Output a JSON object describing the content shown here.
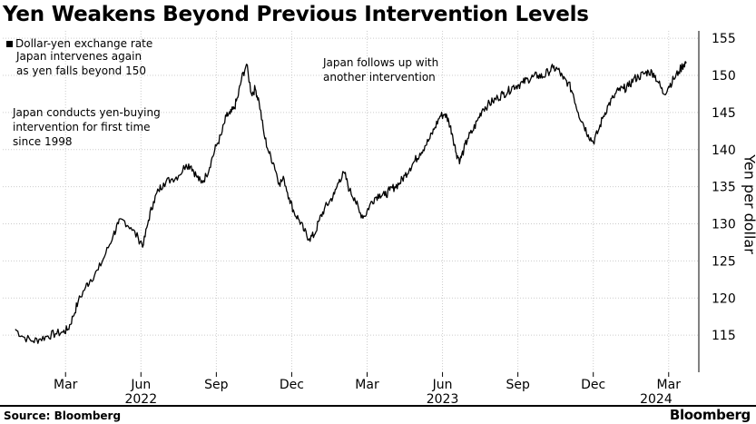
{
  "title": "Yen Weakens Beyond Previous Intervention Levels",
  "legend": "Dollar-yen exchange rate",
  "source": "Source: Bloomberg",
  "brand": "Bloomberg",
  "colors": {
    "series": "#000000",
    "grid": "#cccccc",
    "text": "#000000",
    "background": "#ffffff"
  },
  "chart_data": {
    "type": "line",
    "title": "Yen Weakens Beyond Previous Intervention Levels",
    "ylabel": "Yen per dollar",
    "xlabel": "",
    "ylim": [
      110,
      156
    ],
    "grid": true,
    "y_ticks": [
      115,
      120,
      125,
      130,
      135,
      140,
      145,
      150,
      155
    ],
    "month_ticks": [
      {
        "label": "Mar",
        "t": 2
      },
      {
        "label": "Jun",
        "t": 5
      },
      {
        "label": "Sep",
        "t": 8
      },
      {
        "label": "Dec",
        "t": 11
      },
      {
        "label": "Mar",
        "t": 14
      },
      {
        "label": "Jun",
        "t": 17
      },
      {
        "label": "Sep",
        "t": 20
      },
      {
        "label": "Dec",
        "t": 23
      },
      {
        "label": "Mar",
        "t": 26
      }
    ],
    "year_labels": [
      {
        "label": "2022",
        "t": 5
      },
      {
        "label": "2023",
        "t": 17
      },
      {
        "label": "2024",
        "t": 25.5
      }
    ],
    "series": [
      {
        "name": "Dollar-yen exchange rate",
        "t": [
          0,
          0.3,
          0.7,
          1.0,
          1.3,
          1.6,
          1.9,
          2.1,
          2.3,
          2.5,
          2.8,
          3.0,
          3.3,
          3.6,
          3.9,
          4.1,
          4.3,
          4.6,
          4.9,
          5.1,
          5.3,
          5.5,
          5.7,
          5.9,
          6.2,
          6.5,
          6.8,
          7.0,
          7.2,
          7.4,
          7.6,
          7.8,
          8.0,
          8.2,
          8.4,
          8.55,
          8.7,
          8.85,
          9.0,
          9.2,
          9.4,
          9.55,
          9.7,
          9.9,
          10.1,
          10.3,
          10.5,
          10.7,
          10.9,
          11.1,
          11.3,
          11.5,
          11.7,
          11.9,
          12.1,
          12.3,
          12.5,
          12.7,
          12.9,
          13.1,
          13.3,
          13.5,
          13.7,
          13.9,
          14.1,
          14.3,
          14.5,
          14.7,
          14.9,
          15.1,
          15.3,
          15.5,
          15.7,
          15.9,
          16.1,
          16.3,
          16.5,
          16.7,
          16.9,
          17.1,
          17.25,
          17.4,
          17.55,
          17.7,
          17.85,
          18.0,
          18.2,
          18.4,
          18.6,
          18.8,
          19.0,
          19.2,
          19.4,
          19.6,
          19.8,
          20.0,
          20.2,
          20.4,
          20.6,
          20.8,
          21.0,
          21.2,
          21.4,
          21.6,
          21.8,
          22.0,
          22.2,
          22.4,
          22.6,
          22.8,
          23.0,
          23.2,
          23.4,
          23.6,
          23.8,
          24.0,
          24.2,
          24.4,
          24.6,
          24.8,
          25.0,
          25.2,
          25.4,
          25.6,
          25.8,
          26.0,
          26.2,
          26.4,
          26.6,
          26.7
        ],
        "values": [
          115.8,
          114.8,
          114.2,
          114.5,
          114.9,
          115.2,
          115.4,
          115.8,
          117.5,
          119.5,
          121.5,
          122.5,
          123.8,
          126.0,
          128.5,
          130.0,
          130.5,
          129.5,
          128.0,
          127.2,
          130.5,
          133.0,
          134.5,
          135.5,
          136.0,
          136.5,
          138.0,
          137.8,
          136.5,
          135.5,
          136.5,
          138.5,
          140.5,
          142.0,
          144.5,
          144.8,
          145.5,
          147.0,
          149.5,
          151.5,
          147.5,
          148.2,
          146.5,
          142.0,
          139.5,
          138.0,
          135.5,
          136.0,
          133.5,
          131.5,
          130.5,
          129.0,
          128.0,
          128.5,
          130.5,
          132.0,
          133.0,
          134.0,
          136.0,
          136.8,
          134.5,
          133.5,
          131.5,
          131.0,
          132.5,
          133.5,
          134.0,
          133.8,
          134.5,
          135.0,
          135.5,
          136.5,
          137.5,
          138.5,
          139.5,
          140.5,
          141.5,
          143.0,
          144.5,
          144.8,
          143.8,
          142.0,
          139.5,
          138.5,
          140.0,
          141.5,
          142.5,
          144.0,
          145.5,
          146.0,
          146.5,
          147.0,
          147.5,
          147.8,
          148.5,
          148.7,
          149.0,
          149.5,
          149.8,
          150.0,
          149.8,
          150.5,
          151.0,
          150.8,
          149.5,
          149.0,
          147.5,
          145.0,
          143.5,
          142.0,
          141.0,
          142.5,
          144.5,
          146.0,
          147.0,
          148.0,
          148.2,
          148.5,
          149.5,
          149.8,
          150.2,
          150.5,
          150.3,
          149.0,
          147.5,
          148.5,
          149.5,
          150.5,
          151.5,
          151.8
        ]
      }
    ],
    "annotations": [
      {
        "lines": [
          "Japan conducts yen-buying",
          "intervention for first time",
          "since 1998"
        ]
      },
      {
        "lines": [
          "Japan intervenes again",
          "as yen falls beyond 150"
        ]
      },
      {
        "lines": [
          "Japan follows up with",
          "another intervention"
        ]
      }
    ]
  }
}
